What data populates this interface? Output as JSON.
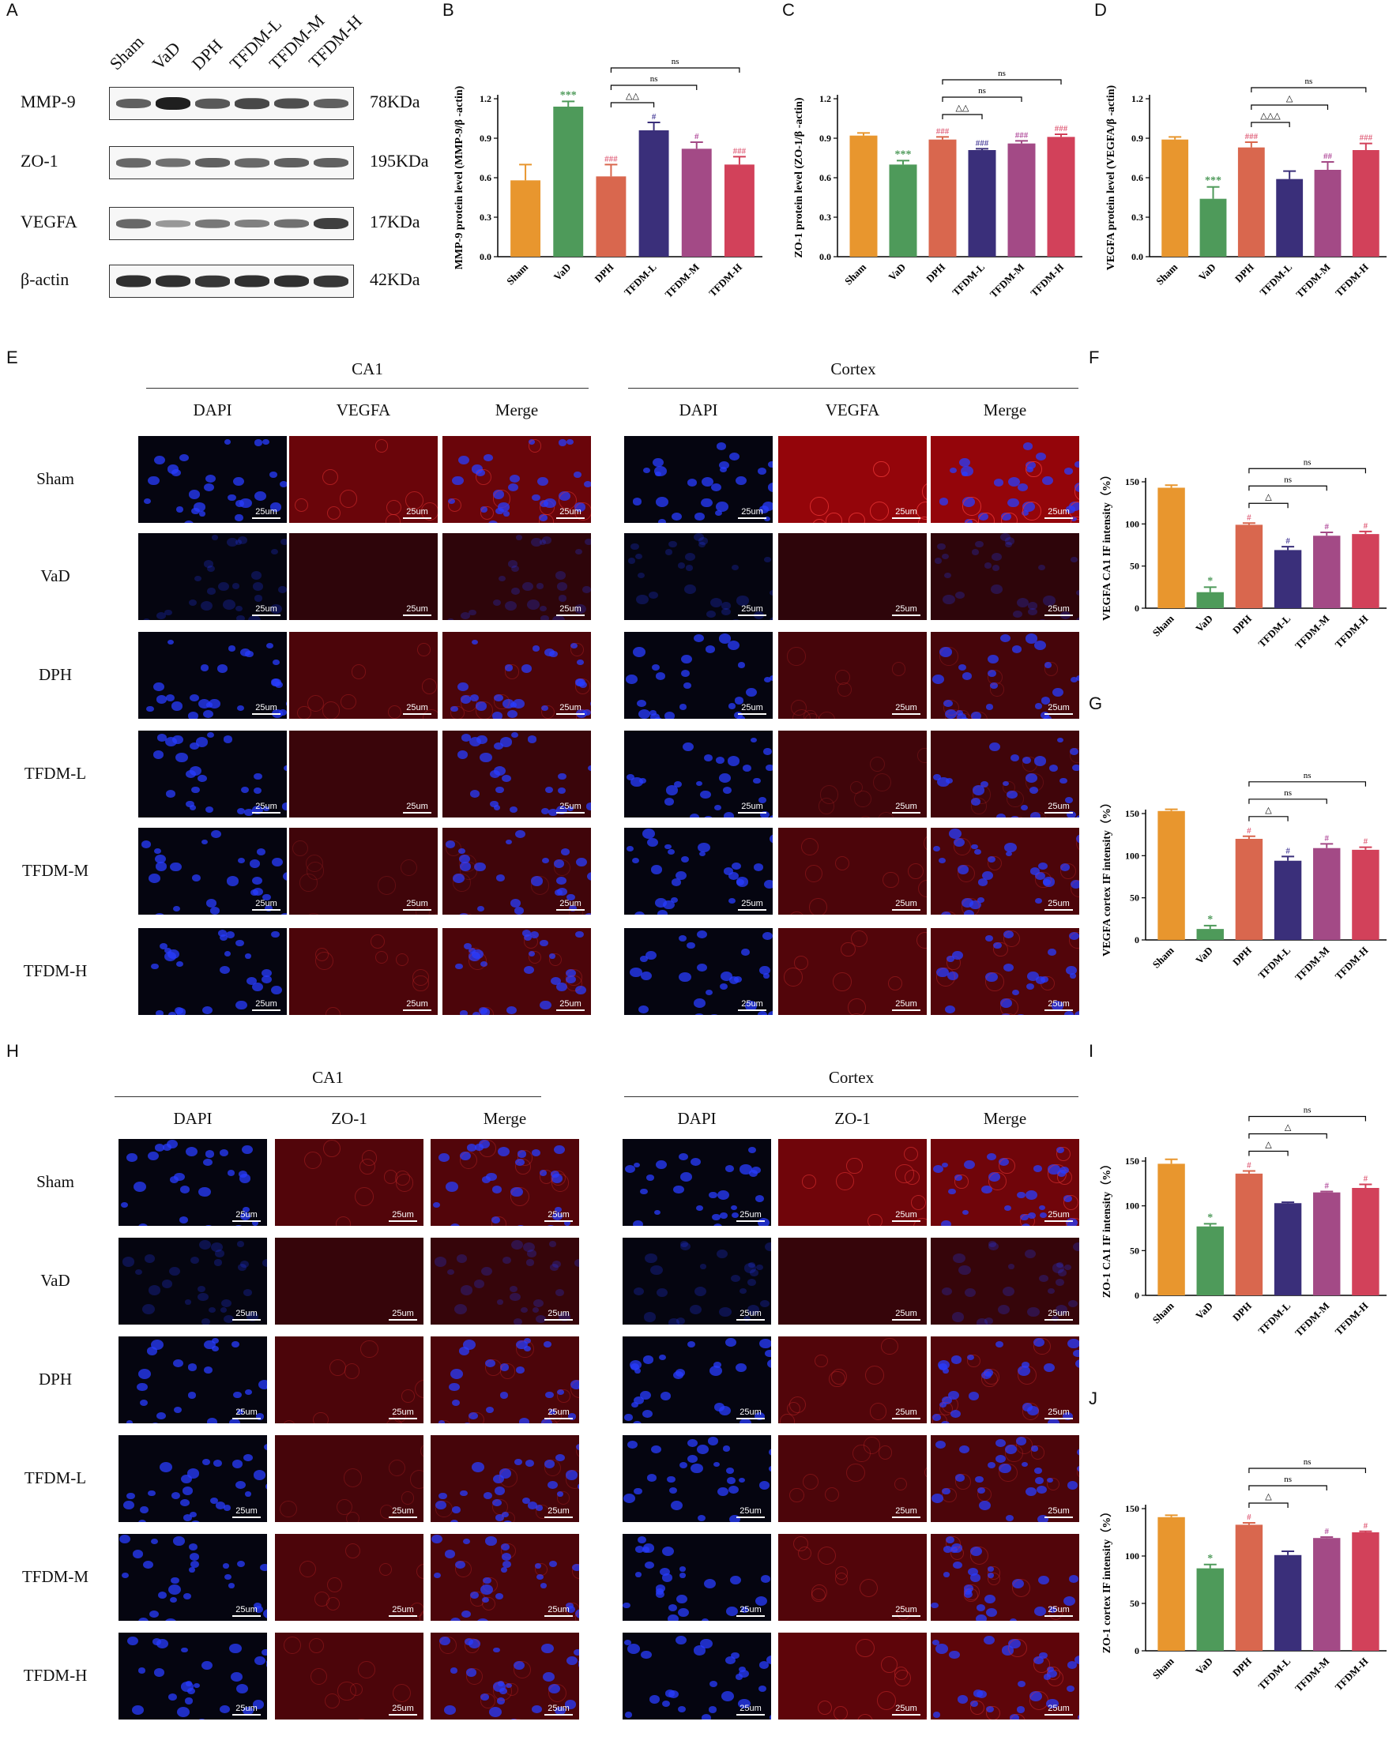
{
  "panel_letters": [
    "A",
    "B",
    "C",
    "D",
    "E",
    "F",
    "G",
    "H",
    "I",
    "J"
  ],
  "western_blot": {
    "lanes": [
      "Sham",
      "VaD",
      "DPH",
      "TFDM-L",
      "TFDM-M",
      "TFDM-H"
    ],
    "rows": [
      {
        "protein": "MMP-9",
        "kda": "78KDa",
        "band_intensity": [
          0.6,
          1.0,
          0.65,
          0.75,
          0.7,
          0.6
        ]
      },
      {
        "protein": "ZO-1",
        "kda": "195KDa",
        "band_intensity": [
          0.55,
          0.5,
          0.6,
          0.55,
          0.6,
          0.6
        ]
      },
      {
        "protein": "VEGFA",
        "kda": "17KDa",
        "band_intensity": [
          0.55,
          0.25,
          0.45,
          0.4,
          0.5,
          0.8
        ]
      },
      {
        "protein": "β-actin",
        "kda": "42KDa",
        "band_intensity": [
          0.9,
          0.9,
          0.85,
          0.9,
          0.9,
          0.85
        ]
      }
    ]
  },
  "if_vegfa": {
    "regions": [
      "CA1",
      "Cortex"
    ],
    "channels": [
      "DAPI",
      "VEGFA",
      "Merge"
    ],
    "groups": [
      "Sham",
      "VaD",
      "DPH",
      "TFDM-L",
      "TFDM-M",
      "TFDM-H"
    ],
    "scale_label": "25um"
  },
  "if_zo1": {
    "regions": [
      "CA1",
      "Cortex"
    ],
    "channels": [
      "DAPI",
      "ZO-1",
      "Merge"
    ],
    "groups": [
      "Sham",
      "VaD",
      "DPH",
      "TFDM-L",
      "TFDM-M",
      "TFDM-H"
    ],
    "scale_label": "25um"
  },
  "colors": {
    "Sham": "#E8962E",
    "VaD": "#4E9A5A",
    "DPH": "#D9674E",
    "TFDM-L": "#3A2F7A",
    "TFDM-M": "#A34A86",
    "TFDM-H": "#D2415A",
    "star": "#4E9A5A",
    "hash_red": "#E0607A",
    "hash_blue": "#4A3F9A",
    "hash_purple": "#B04A9A"
  },
  "chart_data": [
    {
      "id": "B",
      "type": "bar",
      "categories": [
        "Sham",
        "VaD",
        "DPH",
        "TFDM-L",
        "TFDM-M",
        "TFDM-H"
      ],
      "values": [
        0.58,
        1.14,
        0.61,
        0.96,
        0.82,
        0.7
      ],
      "errors": [
        0.12,
        0.04,
        0.09,
        0.06,
        0.05,
        0.06
      ],
      "ylabel": "MMP-9 protein level (MMP-9/β -actin)",
      "ylim": [
        0,
        1.2
      ],
      "yticks": [
        "0.0",
        "0.3",
        "0.6",
        "0.9",
        "1.2"
      ],
      "marks": [
        "",
        "***",
        "###",
        "#",
        "#",
        "###"
      ],
      "mark_colors": [
        "",
        "star",
        "hash_red",
        "hash_blue",
        "hash_purple",
        "hash_red"
      ],
      "brackets": [
        {
          "from": 2,
          "to": 3,
          "label": "△△"
        },
        {
          "from": 2,
          "to": 4,
          "label": "ns"
        },
        {
          "from": 2,
          "to": 5,
          "label": "ns"
        }
      ]
    },
    {
      "id": "C",
      "type": "bar",
      "categories": [
        "Sham",
        "VaD",
        "DPH",
        "TFDM-L",
        "TFDM-M",
        "TFDM-H"
      ],
      "values": [
        0.92,
        0.7,
        0.89,
        0.81,
        0.86,
        0.91
      ],
      "errors": [
        0.02,
        0.03,
        0.02,
        0.01,
        0.02,
        0.02
      ],
      "ylabel": "ZO-1 protein level (ZO-1/β -actin)",
      "ylim": [
        0,
        1.2
      ],
      "yticks": [
        "0.0",
        "0.3",
        "0.6",
        "0.9",
        "1.2"
      ],
      "marks": [
        "",
        "***",
        "###",
        "###",
        "###",
        "###"
      ],
      "mark_colors": [
        "",
        "star",
        "hash_red",
        "hash_blue",
        "hash_purple",
        "hash_red"
      ],
      "brackets": [
        {
          "from": 2,
          "to": 3,
          "label": "△△"
        },
        {
          "from": 2,
          "to": 4,
          "label": "ns"
        },
        {
          "from": 2,
          "to": 5,
          "label": "ns"
        }
      ]
    },
    {
      "id": "D",
      "type": "bar",
      "categories": [
        "Sham",
        "VaD",
        "DPH",
        "TFDM-L",
        "TFDM-M",
        "TFDM-H"
      ],
      "values": [
        0.89,
        0.44,
        0.83,
        0.59,
        0.66,
        0.81
      ],
      "errors": [
        0.02,
        0.09,
        0.04,
        0.06,
        0.06,
        0.05
      ],
      "ylabel": "VEGFA protein level (VEGFA/β -actin)",
      "ylim": [
        0,
        1.2
      ],
      "yticks": [
        "0.0",
        "0.3",
        "0.6",
        "0.9",
        "1.2"
      ],
      "marks": [
        "",
        "***",
        "###",
        "",
        "##",
        "###"
      ],
      "mark_colors": [
        "",
        "star",
        "hash_red",
        "",
        "hash_purple",
        "hash_red"
      ],
      "brackets": [
        {
          "from": 2,
          "to": 3,
          "label": "△△△"
        },
        {
          "from": 2,
          "to": 4,
          "label": "△"
        },
        {
          "from": 2,
          "to": 5,
          "label": "ns"
        }
      ]
    },
    {
      "id": "F",
      "type": "bar",
      "categories": [
        "Sham",
        "VaD",
        "DPH",
        "TFDM-L",
        "TFDM-M",
        "TFDM-H"
      ],
      "values": [
        143,
        19,
        99,
        69,
        86,
        88
      ],
      "errors": [
        3,
        6,
        2,
        4,
        4,
        3
      ],
      "ylabel": "VEGFA CA1 IF intensity（%）",
      "ylim": [
        0,
        150
      ],
      "yticks": [
        "0",
        "50",
        "100",
        "150"
      ],
      "marks": [
        "",
        "*",
        "#",
        "#",
        "#",
        "#"
      ],
      "mark_colors": [
        "",
        "star",
        "hash_red",
        "hash_blue",
        "hash_purple",
        "hash_red"
      ],
      "brackets": [
        {
          "from": 2,
          "to": 3,
          "label": "△"
        },
        {
          "from": 2,
          "to": 4,
          "label": "ns"
        },
        {
          "from": 2,
          "to": 5,
          "label": "ns"
        }
      ]
    },
    {
      "id": "G",
      "type": "bar",
      "categories": [
        "Sham",
        "VaD",
        "DPH",
        "TFDM-L",
        "TFDM-M",
        "TFDM-H"
      ],
      "values": [
        153,
        13,
        120,
        94,
        109,
        107
      ],
      "errors": [
        2,
        4,
        3,
        5,
        5,
        3
      ],
      "ylabel": "VEGFA  cortex IF intensity（%）",
      "ylim": [
        0,
        150
      ],
      "yticks": [
        "0",
        "50",
        "100",
        "150"
      ],
      "marks": [
        "",
        "*",
        "#",
        "#",
        "#",
        "#"
      ],
      "mark_colors": [
        "",
        "star",
        "hash_red",
        "hash_blue",
        "hash_purple",
        "hash_red"
      ],
      "brackets": [
        {
          "from": 2,
          "to": 3,
          "label": "△"
        },
        {
          "from": 2,
          "to": 4,
          "label": "ns"
        },
        {
          "from": 2,
          "to": 5,
          "label": "ns"
        }
      ]
    },
    {
      "id": "I",
      "type": "bar",
      "categories": [
        "Sham",
        "VaD",
        "DPH",
        "TFDM-L",
        "TFDM-M",
        "TFDM-H"
      ],
      "values": [
        147,
        77,
        136,
        103,
        115,
        120
      ],
      "errors": [
        5,
        3,
        3,
        1,
        1,
        4
      ],
      "ylabel": "ZO-1 CA1 IF intensity（%）",
      "ylim": [
        0,
        150
      ],
      "yticks": [
        "0",
        "50",
        "100",
        "150"
      ],
      "marks": [
        "",
        "*",
        "#",
        "",
        "#",
        "#"
      ],
      "mark_colors": [
        "",
        "star",
        "hash_red",
        "",
        "hash_purple",
        "hash_red"
      ],
      "brackets": [
        {
          "from": 2,
          "to": 3,
          "label": "△"
        },
        {
          "from": 2,
          "to": 4,
          "label": "△"
        },
        {
          "from": 2,
          "to": 5,
          "label": "ns"
        }
      ]
    },
    {
      "id": "J",
      "type": "bar",
      "categories": [
        "Sham",
        "VaD",
        "DPH",
        "TFDM-L",
        "TFDM-M",
        "TFDM-H"
      ],
      "values": [
        141,
        87,
        133,
        101,
        119,
        125
      ],
      "errors": [
        2,
        4,
        2,
        4,
        1,
        1
      ],
      "ylabel": "ZO-1  cortex IF intensity（%）",
      "ylim": [
        0,
        150
      ],
      "yticks": [
        "0",
        "50",
        "100",
        "150"
      ],
      "marks": [
        "",
        "*",
        "#",
        "",
        "#",
        "#"
      ],
      "mark_colors": [
        "",
        "star",
        "hash_red",
        "",
        "hash_purple",
        "hash_red"
      ],
      "brackets": [
        {
          "from": 2,
          "to": 3,
          "label": "△"
        },
        {
          "from": 2,
          "to": 4,
          "label": "ns"
        },
        {
          "from": 2,
          "to": 5,
          "label": "ns"
        }
      ]
    }
  ]
}
